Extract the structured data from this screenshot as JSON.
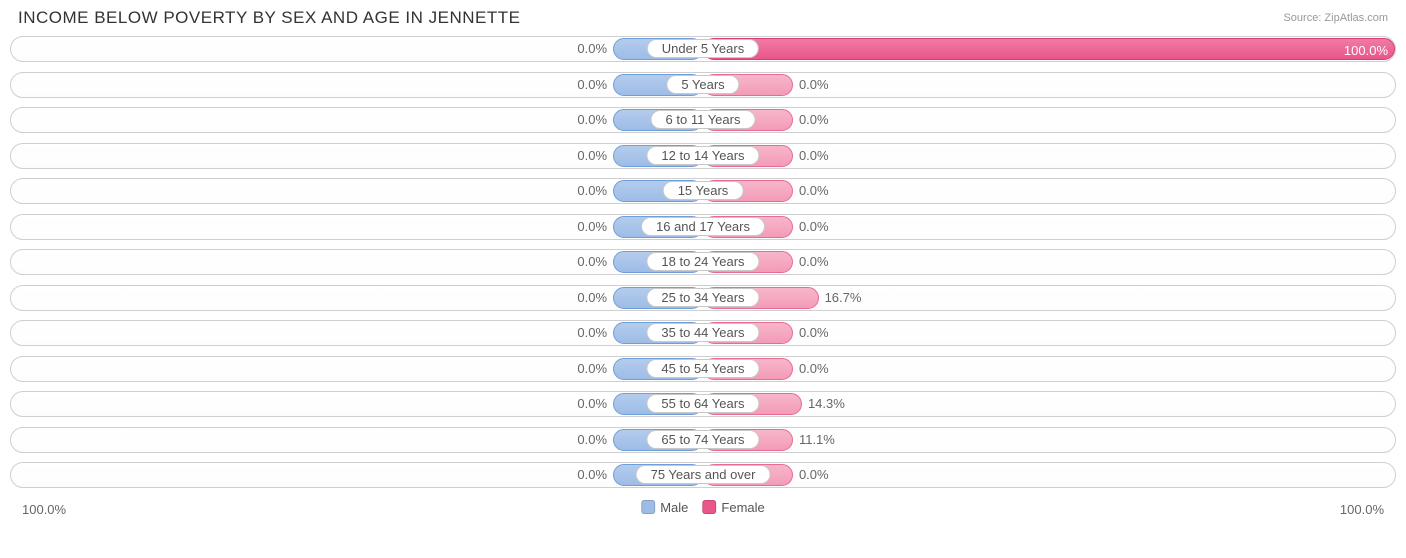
{
  "title": "INCOME BELOW POVERTY BY SEX AND AGE IN JENNETTE",
  "source": "Source: ZipAtlas.com",
  "axis": {
    "left": "100.0%",
    "right": "100.0%"
  },
  "legend": {
    "male": {
      "label": "Male",
      "color": "#9dbce6"
    },
    "female": {
      "label": "Female",
      "color": "#ea558b"
    }
  },
  "chart": {
    "type": "diverging-bar",
    "min_bar_pct": 13.0,
    "male_color": "#9dbce6",
    "male_border": "#6f9fd8",
    "female_color": "#f39cb7",
    "female_border": "#e86b94",
    "female_full_color": "#ea558b",
    "track_border": "#cfcfcf",
    "label_color": "#666666",
    "label_fontsize": 13,
    "background": "#ffffff",
    "rows": [
      {
        "category": "Under 5 Years",
        "male_pct": 0.0,
        "female_pct": 100.0,
        "male_label": "0.0%",
        "female_label": "100.0%",
        "female_label_inside": true
      },
      {
        "category": "5 Years",
        "male_pct": 0.0,
        "female_pct": 0.0,
        "male_label": "0.0%",
        "female_label": "0.0%"
      },
      {
        "category": "6 to 11 Years",
        "male_pct": 0.0,
        "female_pct": 0.0,
        "male_label": "0.0%",
        "female_label": "0.0%"
      },
      {
        "category": "12 to 14 Years",
        "male_pct": 0.0,
        "female_pct": 0.0,
        "male_label": "0.0%",
        "female_label": "0.0%"
      },
      {
        "category": "15 Years",
        "male_pct": 0.0,
        "female_pct": 0.0,
        "male_label": "0.0%",
        "female_label": "0.0%"
      },
      {
        "category": "16 and 17 Years",
        "male_pct": 0.0,
        "female_pct": 0.0,
        "male_label": "0.0%",
        "female_label": "0.0%"
      },
      {
        "category": "18 to 24 Years",
        "male_pct": 0.0,
        "female_pct": 0.0,
        "male_label": "0.0%",
        "female_label": "0.0%"
      },
      {
        "category": "25 to 34 Years",
        "male_pct": 0.0,
        "female_pct": 16.7,
        "male_label": "0.0%",
        "female_label": "16.7%"
      },
      {
        "category": "35 to 44 Years",
        "male_pct": 0.0,
        "female_pct": 0.0,
        "male_label": "0.0%",
        "female_label": "0.0%"
      },
      {
        "category": "45 to 54 Years",
        "male_pct": 0.0,
        "female_pct": 0.0,
        "male_label": "0.0%",
        "female_label": "0.0%"
      },
      {
        "category": "55 to 64 Years",
        "male_pct": 0.0,
        "female_pct": 14.3,
        "male_label": "0.0%",
        "female_label": "14.3%"
      },
      {
        "category": "65 to 74 Years",
        "male_pct": 0.0,
        "female_pct": 11.1,
        "male_label": "0.0%",
        "female_label": "11.1%"
      },
      {
        "category": "75 Years and over",
        "male_pct": 0.0,
        "female_pct": 0.0,
        "male_label": "0.0%",
        "female_label": "0.0%"
      }
    ]
  }
}
